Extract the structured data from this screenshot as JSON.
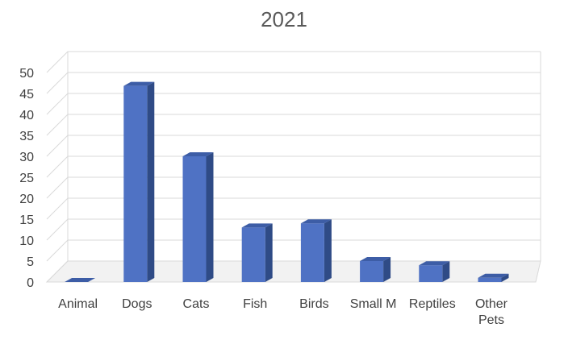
{
  "chart_data": {
    "type": "bar",
    "style": "3d-column",
    "title": "2021",
    "xlabel": "",
    "ylabel": "",
    "ylim": [
      0,
      50
    ],
    "yticks": [
      0,
      5,
      10,
      15,
      20,
      25,
      30,
      35,
      40,
      45,
      50
    ],
    "grid": true,
    "legend": "none",
    "categories": [
      [
        "Animal"
      ],
      [
        "Dogs"
      ],
      [
        "Cats"
      ],
      [
        "Fish"
      ],
      [
        "Birds"
      ],
      [
        "Small M"
      ],
      [
        "Reptiles"
      ],
      [
        "Other",
        "Pets"
      ]
    ],
    "values": [
      0,
      46.8,
      30.0,
      13.0,
      14.0,
      5.0,
      4.0,
      1.0
    ],
    "colors": {
      "bar_front": "#4f72c4",
      "bar_side": "#2f4b86",
      "bar_top": "#3d5da6"
    }
  }
}
